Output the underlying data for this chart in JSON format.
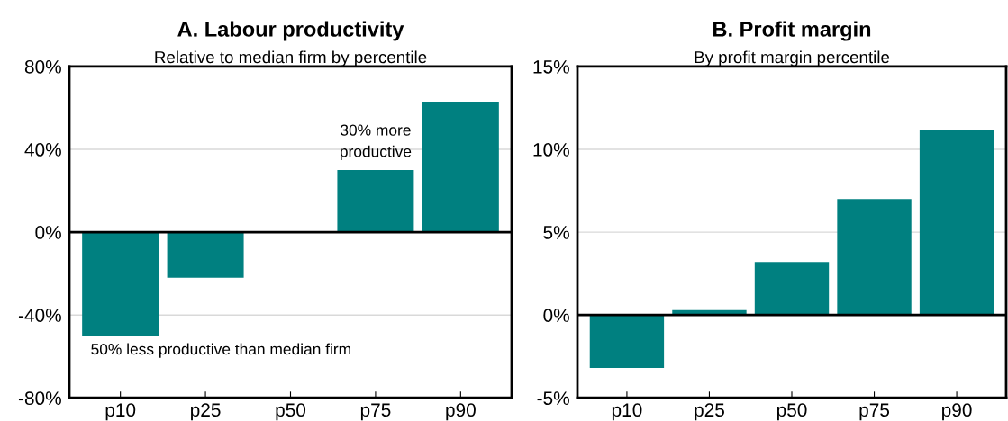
{
  "chart_data": [
    {
      "type": "bar",
      "title": "A. Labour productivity",
      "subtitle": "Relative to median firm by percentile",
      "categories": [
        "p10",
        "p25",
        "p50",
        "p75",
        "p90"
      ],
      "values": [
        -50,
        -22,
        0,
        30,
        63
      ],
      "color": "#008080",
      "ylim": [
        -80,
        80
      ],
      "yticks": [
        {
          "value": -80,
          "label": "-80%"
        },
        {
          "value": -40,
          "label": "-40%"
        },
        {
          "value": 0,
          "label": "0%"
        },
        {
          "value": 40,
          "label": "40%"
        },
        {
          "value": 80,
          "label": "80%"
        }
      ],
      "grid": "y",
      "ref_lines": [
        {
          "axis": "y",
          "value": 0,
          "color": "#000000"
        }
      ],
      "annotations": [
        {
          "text": "30% more\nproductive",
          "x": "p75",
          "y": 30
        },
        {
          "text": "50% less productive than median firm",
          "x": "p10",
          "y": -50
        }
      ]
    },
    {
      "type": "bar",
      "title": "B. Profit margin",
      "subtitle": "By profit margin percentile",
      "categories": [
        "p10",
        "p25",
        "p50",
        "p75",
        "p90"
      ],
      "values": [
        -3.2,
        0.3,
        3.2,
        7.0,
        11.2
      ],
      "color": "#008080",
      "ylim": [
        -5,
        15
      ],
      "yticks": [
        {
          "value": -5,
          "label": "-5%"
        },
        {
          "value": 0,
          "label": "0%"
        },
        {
          "value": 5,
          "label": "5%"
        },
        {
          "value": 10,
          "label": "10%"
        },
        {
          "value": 15,
          "label": "15%"
        }
      ],
      "grid": "y",
      "ref_lines": [
        {
          "axis": "y",
          "value": 0,
          "color": "#000000"
        }
      ]
    }
  ]
}
